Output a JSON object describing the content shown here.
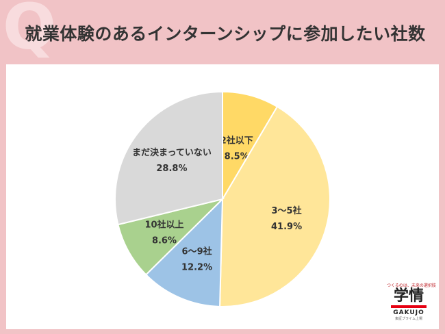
{
  "title": "就業体験のあるインターンシップに参加したい社数",
  "corner_mark": "Q",
  "chart_data": {
    "type": "pie",
    "title": "就業体験のあるインターンシップに参加したい社数",
    "start": "12 o'clock, clockwise",
    "slices": [
      {
        "label": "2社以下",
        "value": 8.5,
        "display": "8.5%",
        "color": "#ffd966"
      },
      {
        "label": "3～5社",
        "value": 41.9,
        "display": "41.9%",
        "color": "#ffe699"
      },
      {
        "label": "6～9社",
        "value": 12.2,
        "display": "12.2%",
        "color": "#9dc3e6"
      },
      {
        "label": "10社以上",
        "value": 8.6,
        "display": "8.6%",
        "color": "#a9d18e"
      },
      {
        "label": "まだ決まっていない",
        "value": 28.8,
        "display": "28.8%",
        "color": "#d9d9d9"
      }
    ],
    "border_color": "#ffffff"
  },
  "logo": {
    "tagline": "つくるのは、未来の選択肢",
    "main": "学情",
    "sub": "GAKUJO",
    "foot": "東証プライム上場",
    "accent": "#e60012"
  }
}
